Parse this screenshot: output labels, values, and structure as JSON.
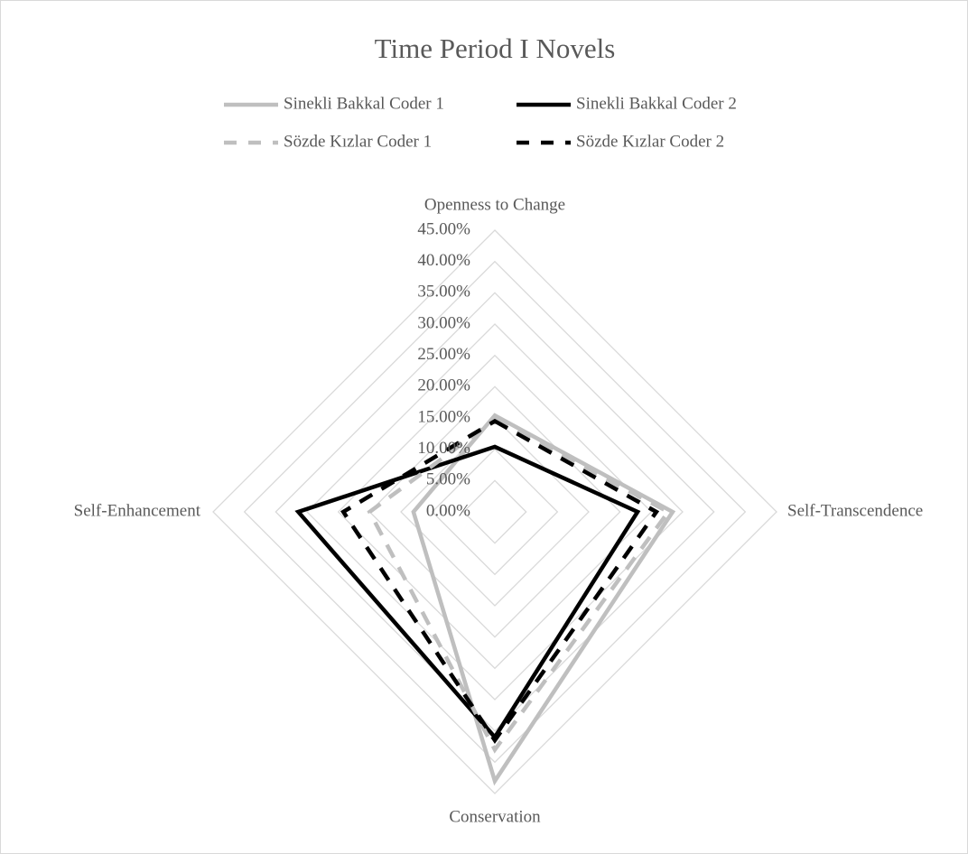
{
  "chart_data": {
    "type": "radar",
    "title": "Time Period I Novels",
    "categories": [
      "Openness to Change",
      "Self-Transcendence",
      "Conservation",
      "Self-Enhancement"
    ],
    "series": [
      {
        "name": "Sinekli Bakkal Coder 1",
        "color": "#bfbfbf",
        "line_style": "solid",
        "values": [
          15.4,
          28.4,
          43,
          13
        ]
      },
      {
        "name": "Sinekli Bakkal Coder 2",
        "color": "#000000",
        "line_style": "solid",
        "values": [
          10.4,
          22.8,
          36,
          31.4
        ]
      },
      {
        "name": "Sözde Kızlar Coder 1",
        "color": "#bfbfbf",
        "line_style": "dashed",
        "values": [
          14.7,
          27.7,
          38,
          20
        ]
      },
      {
        "name": "Sözde Kızlar Coder 2",
        "color": "#000000",
        "line_style": "dashed",
        "values": [
          14.5,
          25.8,
          36.5,
          24.2
        ]
      }
    ],
    "rlim": [
      0,
      45
    ],
    "rticks": [
      {
        "value": 0,
        "label": "0.00%"
      },
      {
        "value": 5,
        "label": "5.00%"
      },
      {
        "value": 10,
        "label": "10.00%"
      },
      {
        "value": 15,
        "label": "15.00%"
      },
      {
        "value": 20,
        "label": "20.00%"
      },
      {
        "value": 25,
        "label": "25.00%"
      },
      {
        "value": 30,
        "label": "30.00%"
      },
      {
        "value": 35,
        "label": "35.00%"
      },
      {
        "value": 40,
        "label": "40.00%"
      },
      {
        "value": 45,
        "label": "45.00%"
      }
    ],
    "grid": true
  }
}
